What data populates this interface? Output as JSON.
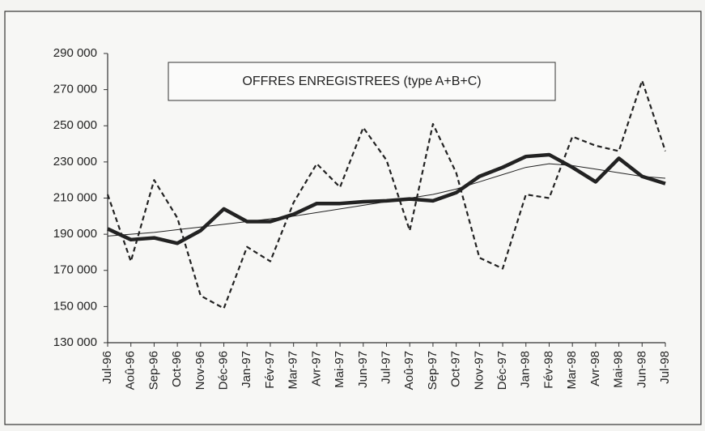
{
  "chart_data": {
    "type": "line",
    "title": "OFFRES ENREGISTREES (type A+B+C)",
    "categories": [
      "Jul-96",
      "Aoû-96",
      "Sep-96",
      "Oct-96",
      "Nov-96",
      "Déc-96",
      "Jan-97",
      "Fév-97",
      "Mar-97",
      "Avr-97",
      "Mai-97",
      "Jun-97",
      "Jul-97",
      "Aoû-97",
      "Sep-97",
      "Oct-97",
      "Nov-97",
      "Déc-97",
      "Jan-98",
      "Fév-98",
      "Mar-98",
      "Avr-98",
      "Mai-98",
      "Jun-98",
      "Jul-98"
    ],
    "series": [
      {
        "color": "#222222",
        "line_style": "dashed",
        "line_width": 2.2,
        "values": [
          212000,
          175000,
          220000,
          199000,
          156000,
          149000,
          183000,
          175000,
          207500,
          229000,
          216000,
          249000,
          231000,
          192000,
          251000,
          224000,
          177000,
          171000,
          212000,
          210000,
          244000,
          239000,
          236000,
          275000,
          236000
        ]
      },
      {
        "color": "#222222",
        "line_style": "solid",
        "line_width": 1,
        "values": [
          189000,
          190000,
          191000,
          192500,
          194000,
          195500,
          197000,
          198500,
          200000,
          202000,
          204000,
          206000,
          208000,
          210000,
          212000,
          215000,
          219000,
          223000,
          227000,
          229000,
          228000,
          226000,
          224000,
          222000,
          221000
        ]
      },
      {
        "color": "#222222",
        "line_style": "solid",
        "line_width": 4.5,
        "values": [
          193000,
          187000,
          188000,
          185000,
          192000,
          204000,
          197000,
          197000,
          201000,
          207000,
          207000,
          208000,
          208500,
          209500,
          208500,
          213000,
          222000,
          227000,
          233000,
          234000,
          227000,
          219000,
          232000,
          222000,
          218000
        ]
      }
    ],
    "ylim": [
      130000,
      290000
    ],
    "yticks": [
      {
        "value": 130000,
        "label": "130 000"
      },
      {
        "value": 150000,
        "label": "150 000"
      },
      {
        "value": 170000,
        "label": "170 000"
      },
      {
        "value": 190000,
        "label": "190 000"
      },
      {
        "value": 210000,
        "label": "210 000"
      },
      {
        "value": 230000,
        "label": "230 000"
      },
      {
        "value": 250000,
        "label": "250 000"
      },
      {
        "value": 270000,
        "label": "270 000"
      },
      {
        "value": 290000,
        "label": "290 000"
      }
    ],
    "grid": false
  }
}
